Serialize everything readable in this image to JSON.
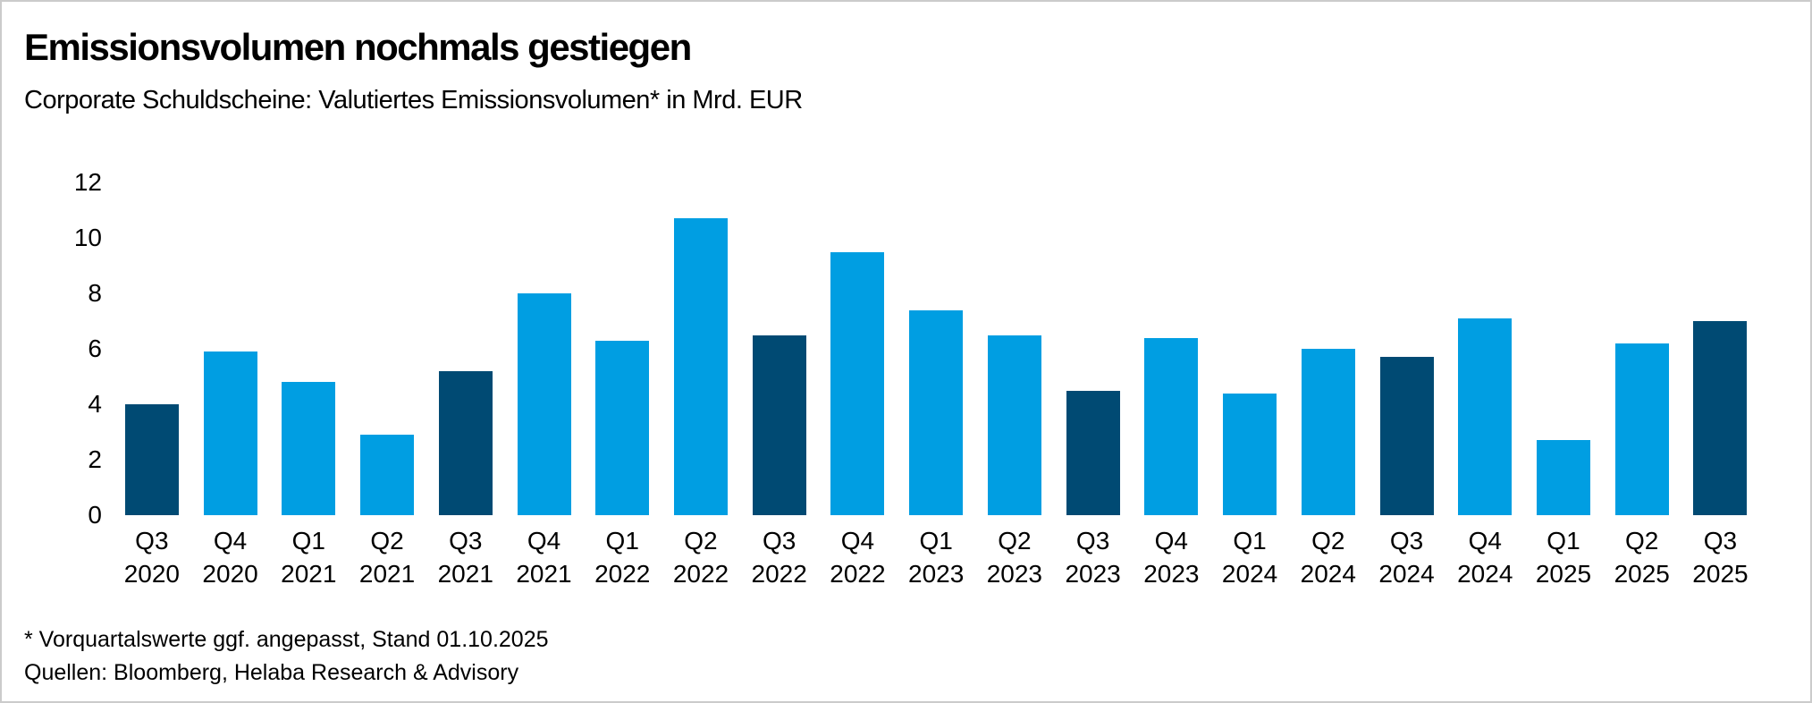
{
  "header": {
    "title": "Emissionsvolumen nochmals gestiegen",
    "subtitle": "Corporate Schuldscheine: Valutiertes Emissionsvolumen* in Mrd. EUR"
  },
  "footer": {
    "footnote": "* Vorquartalswerte ggf. angepasst, Stand 01.10.2025",
    "sources": "Quellen: Bloomberg, Helaba Research & Advisory"
  },
  "colors": {
    "bar_default": "#009EE2",
    "bar_highlight": "#004A73",
    "text": "#000000",
    "background": "#FFFFFF",
    "frame_border": "#CBCBCB"
  },
  "chart_data": {
    "type": "bar",
    "title": "Emissionsvolumen nochmals gestiegen",
    "subtitle": "Corporate Schuldscheine: Valutiertes Emissionsvolumen* in Mrd. EUR",
    "unit": "Mrd. EUR",
    "xlabel": "",
    "ylabel": "",
    "ylim": [
      0,
      12
    ],
    "yticks": [
      0,
      2,
      4,
      6,
      8,
      10,
      12
    ],
    "grid": false,
    "legend": false,
    "highlight_rule": "Q3 quarters rendered in dark blue, all other quarters in light blue",
    "bars": [
      {
        "quarter": "Q3",
        "year": "2020",
        "value": 4.0,
        "highlight": true
      },
      {
        "quarter": "Q4",
        "year": "2020",
        "value": 5.9,
        "highlight": false
      },
      {
        "quarter": "Q1",
        "year": "2021",
        "value": 4.8,
        "highlight": false
      },
      {
        "quarter": "Q2",
        "year": "2021",
        "value": 2.9,
        "highlight": false
      },
      {
        "quarter": "Q3",
        "year": "2021",
        "value": 5.2,
        "highlight": true
      },
      {
        "quarter": "Q4",
        "year": "2021",
        "value": 8.0,
        "highlight": false
      },
      {
        "quarter": "Q1",
        "year": "2022",
        "value": 6.3,
        "highlight": false
      },
      {
        "quarter": "Q2",
        "year": "2022",
        "value": 10.7,
        "highlight": false
      },
      {
        "quarter": "Q3",
        "year": "2022",
        "value": 6.5,
        "highlight": true
      },
      {
        "quarter": "Q4",
        "year": "2022",
        "value": 9.5,
        "highlight": false
      },
      {
        "quarter": "Q1",
        "year": "2023",
        "value": 7.4,
        "highlight": false
      },
      {
        "quarter": "Q2",
        "year": "2023",
        "value": 6.5,
        "highlight": false
      },
      {
        "quarter": "Q3",
        "year": "2023",
        "value": 4.5,
        "highlight": true
      },
      {
        "quarter": "Q4",
        "year": "2023",
        "value": 6.4,
        "highlight": false
      },
      {
        "quarter": "Q1",
        "year": "2024",
        "value": 4.4,
        "highlight": false
      },
      {
        "quarter": "Q2",
        "year": "2024",
        "value": 6.0,
        "highlight": false
      },
      {
        "quarter": "Q3",
        "year": "2024",
        "value": 5.7,
        "highlight": true
      },
      {
        "quarter": "Q4",
        "year": "2024",
        "value": 7.1,
        "highlight": false
      },
      {
        "quarter": "Q1",
        "year": "2025",
        "value": 2.7,
        "highlight": false
      },
      {
        "quarter": "Q2",
        "year": "2025",
        "value": 6.2,
        "highlight": false
      },
      {
        "quarter": "Q3",
        "year": "2025",
        "value": 7.0,
        "highlight": true
      }
    ]
  }
}
